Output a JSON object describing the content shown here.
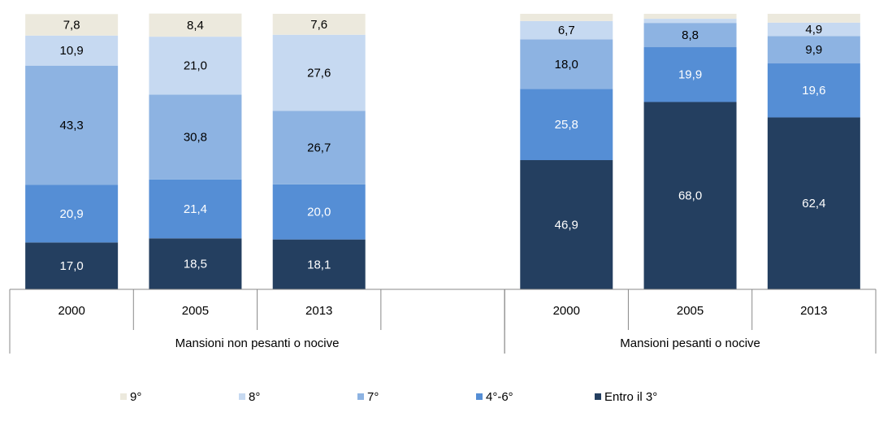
{
  "chart_data": {
    "type": "stacked_bar",
    "categories": [
      "2000",
      "2005",
      "2013",
      null,
      "2000",
      "2005",
      "2013"
    ],
    "groups": [
      "Mansioni non pesanti o nocive",
      "Mansioni pesanti o nocive"
    ],
    "ylim": [
      0,
      100
    ],
    "series": [
      {
        "name": "9°",
        "color": "#ece9dd",
        "values": [
          7.8,
          8.4,
          7.6,
          null,
          2.6,
          1.8,
          3.2
        ],
        "value_labels": [
          "7,8",
          "8,4",
          "7,6",
          null,
          null,
          null,
          null
        ]
      },
      {
        "name": "8°",
        "color": "#c6d9f1",
        "values": [
          10.9,
          21.0,
          27.6,
          null,
          6.7,
          1.5,
          4.9
        ],
        "value_labels": [
          "10,9",
          "21,0",
          "27,6",
          null,
          "6,7",
          null,
          "4,9"
        ]
      },
      {
        "name": "7°",
        "color": "#8db3e2",
        "values": [
          43.3,
          30.8,
          26.7,
          null,
          18.0,
          8.8,
          9.9
        ],
        "value_labels": [
          "43,3",
          "30,8",
          "26,7",
          null,
          "18,0",
          "8,8",
          "9,9"
        ]
      },
      {
        "name": "4°-6°",
        "color": "#558ed5",
        "values": [
          20.9,
          21.4,
          20.0,
          null,
          25.8,
          19.9,
          19.6
        ],
        "value_labels": [
          "20,9",
          "21,4",
          "20,0",
          null,
          "25,8",
          "19,9",
          "19,6"
        ]
      },
      {
        "name": "Entro il 3°",
        "color": "#243f60",
        "values": [
          17.0,
          18.5,
          18.1,
          null,
          46.9,
          68.0,
          62.4
        ],
        "value_labels": [
          "17,0",
          "18,5",
          "18,1",
          null,
          "46,9",
          "68,0",
          "62,4"
        ]
      }
    ]
  }
}
